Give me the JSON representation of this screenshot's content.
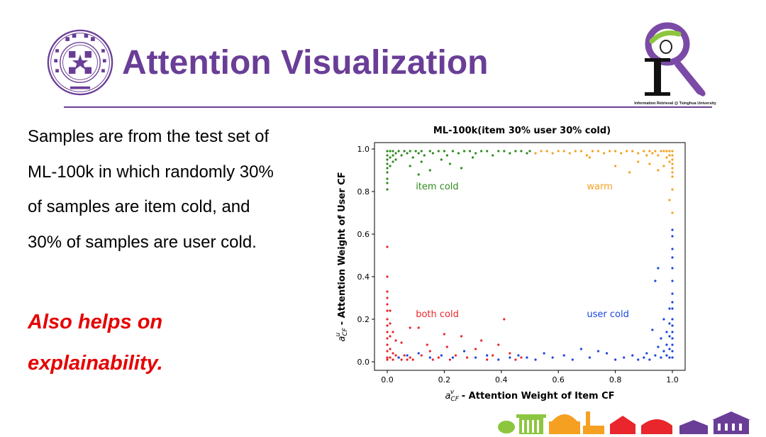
{
  "header": {
    "title": "Attention Visualization",
    "logo_caption": "Information Retrieval @ Tsinghua University",
    "title_color": "#6a3e97"
  },
  "body": {
    "lines": [
      "Samples are from the test set of",
      "ML-100k in which randomly 30%",
      "of samples are item cold, and",
      "30% of samples are user cold."
    ],
    "highlight_lines": [
      "Also helps on",
      "explainability."
    ],
    "highlight_color": "#e60000"
  },
  "icons": {
    "seal": "tsinghua-seal-icon",
    "logo": "magnifier-logo-icon",
    "footer": "campus-skyline-icon"
  },
  "chart_data": {
    "type": "scatter",
    "title": "ML-100k(item 30% user 30% cold)",
    "xlabel_math": "a",
    "xlabel_sub": "CF",
    "xlabel_sup": "v",
    "xlabel_rest": " - Attention Weight of Item CF",
    "ylabel_math": "a",
    "ylabel_sub": "CF",
    "ylabel_sup": "u",
    "ylabel_rest": " - Attention Weight of User CF",
    "xlim": [
      0,
      1
    ],
    "ylim": [
      0,
      1
    ],
    "x_ticks": [
      "0.0",
      "0.2",
      "0.4",
      "0.6",
      "0.8",
      "1.0"
    ],
    "y_ticks": [
      "0.0",
      "0.2",
      "0.4",
      "0.6",
      "0.8",
      "1.0"
    ],
    "grid": false,
    "series": [
      {
        "name": "item cold",
        "color": "#2e8b1e",
        "label_pos": [
          0.1,
          0.81
        ],
        "points": [
          [
            0.0,
            0.99
          ],
          [
            0.0,
            0.97
          ],
          [
            0.0,
            0.95
          ],
          [
            0.0,
            0.93
          ],
          [
            0.0,
            0.91
          ],
          [
            0.0,
            0.89
          ],
          [
            0.0,
            0.86
          ],
          [
            0.0,
            0.84
          ],
          [
            0.0,
            0.81
          ],
          [
            0.01,
            0.99
          ],
          [
            0.01,
            0.96
          ],
          [
            0.01,
            0.92
          ],
          [
            0.02,
            0.99
          ],
          [
            0.02,
            0.97
          ],
          [
            0.02,
            0.94
          ],
          [
            0.03,
            0.98
          ],
          [
            0.03,
            0.95
          ],
          [
            0.04,
            0.99
          ],
          [
            0.05,
            0.97
          ],
          [
            0.06,
            0.99
          ],
          [
            0.07,
            0.98
          ],
          [
            0.08,
            0.99
          ],
          [
            0.09,
            0.96
          ],
          [
            0.1,
            0.99
          ],
          [
            0.11,
            0.98
          ],
          [
            0.12,
            0.99
          ],
          [
            0.13,
            0.97
          ],
          [
            0.15,
            0.99
          ],
          [
            0.16,
            0.98
          ],
          [
            0.18,
            0.99
          ],
          [
            0.2,
            0.99
          ],
          [
            0.21,
            0.97
          ],
          [
            0.23,
            0.99
          ],
          [
            0.25,
            0.98
          ],
          [
            0.27,
            0.99
          ],
          [
            0.29,
            0.99
          ],
          [
            0.31,
            0.98
          ],
          [
            0.33,
            0.99
          ],
          [
            0.35,
            0.99
          ],
          [
            0.37,
            0.97
          ],
          [
            0.39,
            0.99
          ],
          [
            0.41,
            0.99
          ],
          [
            0.43,
            0.98
          ],
          [
            0.45,
            0.99
          ],
          [
            0.47,
            0.99
          ],
          [
            0.49,
            0.98
          ],
          [
            0.5,
            0.99
          ],
          [
            0.08,
            0.92
          ],
          [
            0.12,
            0.94
          ],
          [
            0.15,
            0.9
          ],
          [
            0.19,
            0.95
          ],
          [
            0.22,
            0.93
          ],
          [
            0.26,
            0.91
          ],
          [
            0.3,
            0.96
          ],
          [
            0.11,
            0.88
          ]
        ]
      },
      {
        "name": "warm",
        "color": "#f5a020",
        "label_pos": [
          0.7,
          0.81
        ],
        "points": [
          [
            1.0,
            0.99
          ],
          [
            1.0,
            0.97
          ],
          [
            1.0,
            0.95
          ],
          [
            1.0,
            0.93
          ],
          [
            1.0,
            0.91
          ],
          [
            1.0,
            0.89
          ],
          [
            1.0,
            0.87
          ],
          [
            1.0,
            0.81
          ],
          [
            0.99,
            0.99
          ],
          [
            0.99,
            0.97
          ],
          [
            0.99,
            0.94
          ],
          [
            0.98,
            0.99
          ],
          [
            0.98,
            0.96
          ],
          [
            0.97,
            0.99
          ],
          [
            0.97,
            0.92
          ],
          [
            0.96,
            0.99
          ],
          [
            0.95,
            0.97
          ],
          [
            0.94,
            0.99
          ],
          [
            0.93,
            0.98
          ],
          [
            0.92,
            0.99
          ],
          [
            0.91,
            0.97
          ],
          [
            0.9,
            0.99
          ],
          [
            0.88,
            0.98
          ],
          [
            0.86,
            0.99
          ],
          [
            0.84,
            0.99
          ],
          [
            0.82,
            0.98
          ],
          [
            0.8,
            0.99
          ],
          [
            0.78,
            0.99
          ],
          [
            0.76,
            0.98
          ],
          [
            0.74,
            0.99
          ],
          [
            0.72,
            0.99
          ],
          [
            0.7,
            0.97
          ],
          [
            0.68,
            0.99
          ],
          [
            0.66,
            0.99
          ],
          [
            0.64,
            0.98
          ],
          [
            0.62,
            0.99
          ],
          [
            0.6,
            0.99
          ],
          [
            0.58,
            0.98
          ],
          [
            0.56,
            0.99
          ],
          [
            0.54,
            0.99
          ],
          [
            0.52,
            0.98
          ],
          [
            0.95,
            0.9
          ],
          [
            0.92,
            0.93
          ],
          [
            0.88,
            0.94
          ],
          [
            0.85,
            0.89
          ],
          [
            0.8,
            0.92
          ],
          [
            0.71,
            0.96
          ],
          [
            1.0,
            0.7
          ],
          [
            0.99,
            0.76
          ]
        ]
      },
      {
        "name": "both cold",
        "color": "#e8262b",
        "label_pos": [
          0.1,
          0.21
        ],
        "points": [
          [
            0.0,
            0.54
          ],
          [
            0.0,
            0.4
          ],
          [
            0.0,
            0.33
          ],
          [
            0.0,
            0.3
          ],
          [
            0.0,
            0.27
          ],
          [
            0.0,
            0.24
          ],
          [
            0.0,
            0.2
          ],
          [
            0.0,
            0.17
          ],
          [
            0.0,
            0.14
          ],
          [
            0.0,
            0.11
          ],
          [
            0.0,
            0.08
          ],
          [
            0.0,
            0.05
          ],
          [
            0.0,
            0.02
          ],
          [
            0.0,
            0.01
          ],
          [
            0.01,
            0.24
          ],
          [
            0.01,
            0.18
          ],
          [
            0.01,
            0.12
          ],
          [
            0.01,
            0.06
          ],
          [
            0.01,
            0.02
          ],
          [
            0.02,
            0.14
          ],
          [
            0.02,
            0.04
          ],
          [
            0.02,
            0.01
          ],
          [
            0.03,
            0.1
          ],
          [
            0.03,
            0.03
          ],
          [
            0.04,
            0.02
          ],
          [
            0.05,
            0.01
          ],
          [
            0.06,
            0.03
          ],
          [
            0.07,
            0.01
          ],
          [
            0.08,
            0.02
          ],
          [
            0.09,
            0.01
          ],
          [
            0.11,
            0.16
          ],
          [
            0.12,
            0.03
          ],
          [
            0.14,
            0.08
          ],
          [
            0.16,
            0.01
          ],
          [
            0.18,
            0.02
          ],
          [
            0.2,
            0.13
          ],
          [
            0.22,
            0.01
          ],
          [
            0.24,
            0.03
          ],
          [
            0.26,
            0.12
          ],
          [
            0.28,
            0.02
          ],
          [
            0.31,
            0.06
          ],
          [
            0.33,
            0.1
          ],
          [
            0.35,
            0.01
          ],
          [
            0.37,
            0.03
          ],
          [
            0.39,
            0.08
          ],
          [
            0.41,
            0.2
          ],
          [
            0.43,
            0.04
          ],
          [
            0.45,
            0.01
          ],
          [
            0.47,
            0.02
          ],
          [
            0.05,
            0.09
          ],
          [
            0.08,
            0.16
          ],
          [
            0.15,
            0.05
          ],
          [
            0.21,
            0.07
          ]
        ]
      },
      {
        "name": "user cold",
        "color": "#1a45e0",
        "label_pos": [
          0.7,
          0.21
        ],
        "points": [
          [
            1.0,
            0.62
          ],
          [
            1.0,
            0.59
          ],
          [
            1.0,
            0.53
          ],
          [
            1.0,
            0.49
          ],
          [
            1.0,
            0.44
          ],
          [
            1.0,
            0.38
          ],
          [
            1.0,
            0.32
          ],
          [
            1.0,
            0.28
          ],
          [
            1.0,
            0.25
          ],
          [
            1.0,
            0.2
          ],
          [
            1.0,
            0.17
          ],
          [
            1.0,
            0.14
          ],
          [
            1.0,
            0.11
          ],
          [
            1.0,
            0.08
          ],
          [
            1.0,
            0.05
          ],
          [
            1.0,
            0.02
          ],
          [
            0.99,
            0.25
          ],
          [
            0.99,
            0.18
          ],
          [
            0.99,
            0.12
          ],
          [
            0.99,
            0.06
          ],
          [
            0.99,
            0.02
          ],
          [
            0.98,
            0.14
          ],
          [
            0.98,
            0.08
          ],
          [
            0.98,
            0.03
          ],
          [
            0.97,
            0.2
          ],
          [
            0.97,
            0.05
          ],
          [
            0.96,
            0.11
          ],
          [
            0.96,
            0.02
          ],
          [
            0.95,
            0.07
          ],
          [
            0.94,
            0.03
          ],
          [
            0.93,
            0.15
          ],
          [
            0.92,
            0.01
          ],
          [
            0.91,
            0.04
          ],
          [
            0.9,
            0.02
          ],
          [
            0.88,
            0.01
          ],
          [
            0.86,
            0.03
          ],
          [
            0.83,
            0.02
          ],
          [
            0.8,
            0.01
          ],
          [
            0.77,
            0.04
          ],
          [
            0.74,
            0.05
          ],
          [
            0.71,
            0.02
          ],
          [
            0.68,
            0.06
          ],
          [
            0.65,
            0.01
          ],
          [
            0.62,
            0.03
          ],
          [
            0.58,
            0.02
          ],
          [
            0.55,
            0.04
          ],
          [
            0.52,
            0.01
          ],
          [
            0.49,
            0.02
          ],
          [
            0.46,
            0.03
          ],
          [
            0.43,
            0.02
          ],
          [
            0.39,
            0.01
          ],
          [
            0.35,
            0.03
          ],
          [
            0.31,
            0.02
          ],
          [
            0.27,
            0.05
          ],
          [
            0.23,
            0.02
          ],
          [
            0.19,
            0.03
          ],
          [
            0.15,
            0.02
          ],
          [
            0.11,
            0.04
          ],
          [
            0.07,
            0.03
          ],
          [
            0.04,
            0.02
          ],
          [
            0.94,
            0.38
          ],
          [
            0.95,
            0.44
          ]
        ]
      }
    ]
  }
}
